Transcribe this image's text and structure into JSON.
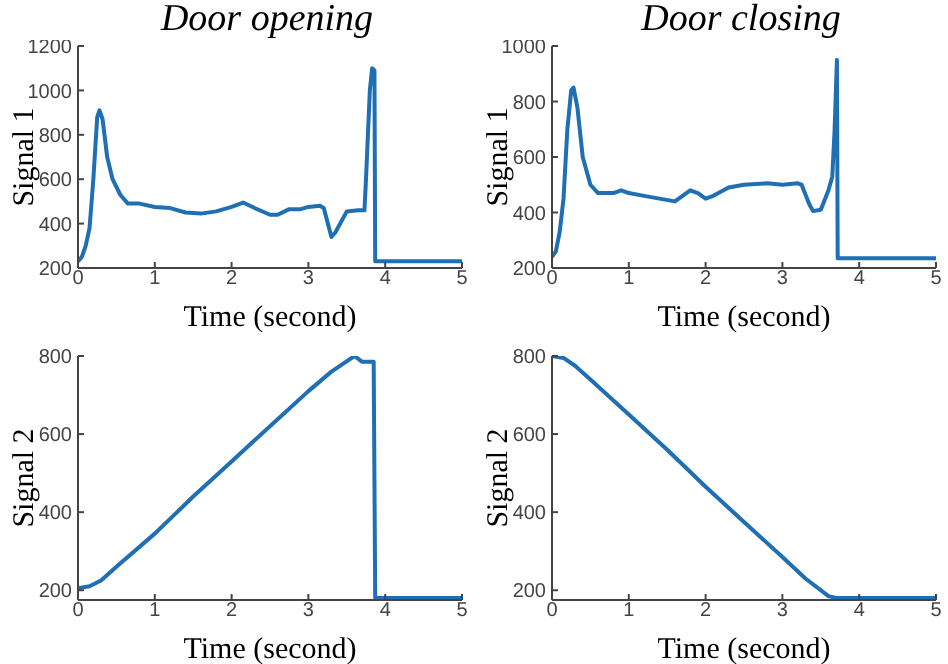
{
  "chart_data": [
    {
      "type": "line",
      "title": "Door opening",
      "xlabel": "Time (second)",
      "ylabel": "Signal 1",
      "xlim": [
        0,
        5
      ],
      "xticks": [
        0,
        1,
        2,
        3,
        4,
        5
      ],
      "ylim": [
        200,
        1200
      ],
      "yticks": [
        200,
        400,
        600,
        800,
        1000,
        1200
      ],
      "x": [
        0,
        0.05,
        0.1,
        0.15,
        0.2,
        0.25,
        0.28,
        0.32,
        0.38,
        0.45,
        0.55,
        0.65,
        0.8,
        1.0,
        1.2,
        1.4,
        1.6,
        1.8,
        2.0,
        2.15,
        2.3,
        2.5,
        2.6,
        2.75,
        2.9,
        3.0,
        3.15,
        3.2,
        3.3,
        3.35,
        3.5,
        3.65,
        3.73,
        3.75,
        3.8,
        3.83,
        3.86,
        3.87,
        5
      ],
      "series": [
        {
          "color": "#1f6fb5",
          "values": [
            230,
            250,
            300,
            380,
            600,
            880,
            910,
            870,
            700,
            600,
            530,
            490,
            490,
            475,
            470,
            450,
            445,
            455,
            475,
            495,
            470,
            440,
            440,
            465,
            465,
            475,
            480,
            470,
            340,
            360,
            455,
            460,
            460,
            600,
            1000,
            1100,
            1090,
            230,
            230
          ]
        }
      ]
    },
    {
      "type": "line",
      "title": "Door closing",
      "xlabel": "Time (second)",
      "ylabel": "Signal 1",
      "xlim": [
        0,
        5
      ],
      "xticks": [
        0,
        1,
        2,
        3,
        4,
        5
      ],
      "ylim": [
        200,
        1000
      ],
      "yticks": [
        200,
        400,
        600,
        800,
        1000
      ],
      "x": [
        0,
        0.05,
        0.1,
        0.15,
        0.2,
        0.25,
        0.28,
        0.33,
        0.4,
        0.5,
        0.6,
        0.8,
        0.9,
        1.0,
        1.2,
        1.4,
        1.6,
        1.7,
        1.8,
        1.9,
        2.0,
        2.1,
        2.3,
        2.5,
        2.8,
        3.0,
        3.2,
        3.25,
        3.35,
        3.4,
        3.5,
        3.6,
        3.65,
        3.68,
        3.71,
        3.72,
        5
      ],
      "series": [
        {
          "color": "#1f6fb5",
          "values": [
            240,
            260,
            330,
            450,
            700,
            840,
            850,
            780,
            600,
            500,
            470,
            470,
            480,
            470,
            460,
            450,
            440,
            460,
            480,
            470,
            450,
            460,
            490,
            500,
            505,
            500,
            505,
            500,
            430,
            405,
            410,
            480,
            530,
            700,
            950,
            235,
            235
          ]
        }
      ]
    },
    {
      "type": "line",
      "xlabel": "Time (second)",
      "ylabel": "Signal 2",
      "xlim": [
        0,
        5
      ],
      "xticks": [
        0,
        1,
        2,
        3,
        4,
        5
      ],
      "ylim": [
        175,
        800
      ],
      "yticks": [
        200,
        400,
        600,
        800
      ],
      "x": [
        0,
        0.15,
        0.3,
        0.5,
        1,
        1.5,
        2,
        2.5,
        3,
        3.3,
        3.6,
        3.7,
        3.85,
        3.87,
        5
      ],
      "series": [
        {
          "color": "#1f6fb5",
          "values": [
            205,
            210,
            225,
            260,
            345,
            440,
            530,
            620,
            710,
            760,
            800,
            785,
            785,
            180,
            180
          ]
        }
      ]
    },
    {
      "type": "line",
      "xlabel": "Time (second)",
      "ylabel": "Signal 2",
      "xlim": [
        0,
        5
      ],
      "xticks": [
        0,
        1,
        2,
        3,
        4,
        5
      ],
      "ylim": [
        175,
        800
      ],
      "yticks": [
        200,
        400,
        600,
        800
      ],
      "x": [
        0,
        0.15,
        0.3,
        0.5,
        1,
        1.5,
        2,
        2.5,
        3,
        3.3,
        3.6,
        3.7,
        5
      ],
      "series": [
        {
          "color": "#1f6fb5",
          "values": [
            800,
            795,
            775,
            740,
            650,
            560,
            465,
            375,
            285,
            230,
            185,
            180,
            180
          ]
        }
      ]
    }
  ]
}
